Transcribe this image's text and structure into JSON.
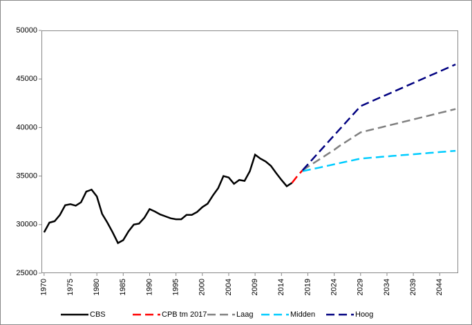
{
  "chart_data": {
    "type": "line",
    "categories": [
      "1970",
      null,
      null,
      null,
      null,
      "1975",
      null,
      null,
      null,
      null,
      "1980",
      null,
      null,
      null,
      null,
      "1985",
      null,
      null,
      null,
      null,
      "1990",
      null,
      null,
      null,
      null,
      "1995",
      null,
      null,
      null,
      null,
      "2000",
      null,
      null,
      null,
      null,
      "2004",
      null,
      null,
      null,
      null,
      "2009",
      null,
      null,
      null,
      null,
      "2014",
      null,
      null,
      null,
      null,
      "2019",
      null,
      null,
      null,
      null,
      "2024",
      null,
      null,
      null,
      null,
      "2029",
      null,
      null,
      null,
      null,
      "2034",
      null,
      null,
      null,
      null,
      "2039",
      null,
      null,
      null,
      null,
      "2044",
      null,
      null,
      null
    ],
    "ylim": [
      25000,
      50000
    ],
    "yticks": [
      25000,
      30000,
      35000,
      40000,
      45000,
      50000
    ],
    "grid": false,
    "legend": "bottom",
    "series": [
      {
        "name": "CBS",
        "color": "#000000",
        "dash": false,
        "values": [
          29200,
          30200,
          30350,
          31000,
          32000,
          32100,
          31950,
          32300,
          33400,
          33600,
          32900,
          31100,
          30200,
          29200,
          28100,
          28400,
          29300,
          30000,
          30100,
          30700,
          31600,
          31350,
          31050,
          30850,
          30650,
          30550,
          30550,
          31000,
          31000,
          31300,
          31800,
          32150,
          33000,
          33750,
          35000,
          34850,
          34200,
          34600,
          34500,
          35500,
          37200,
          36800,
          36500,
          36050,
          35300,
          34600,
          33950,
          34300,
          null,
          null,
          null,
          null,
          null,
          null,
          null,
          null,
          null,
          null,
          null,
          null,
          null,
          null,
          null,
          null,
          null,
          null,
          null,
          null,
          null,
          null,
          null,
          null,
          null,
          null,
          null,
          null,
          null,
          null,
          null
        ]
      },
      {
        "name": "CPB tm 2017",
        "color": "#ff0000",
        "dash": true,
        "values": [
          null,
          null,
          null,
          null,
          null,
          null,
          null,
          null,
          null,
          null,
          null,
          null,
          null,
          null,
          null,
          null,
          null,
          null,
          null,
          null,
          null,
          null,
          null,
          null,
          null,
          null,
          null,
          null,
          null,
          null,
          null,
          null,
          null,
          null,
          null,
          null,
          null,
          null,
          null,
          null,
          null,
          null,
          null,
          null,
          null,
          null,
          null,
          34300,
          35000,
          35600,
          null,
          null,
          null,
          null,
          null,
          null,
          null,
          null,
          null,
          null,
          null,
          null,
          null,
          null,
          null,
          null,
          null,
          null,
          null,
          null,
          null,
          null,
          null,
          null,
          null,
          null,
          null,
          null,
          null
        ]
      },
      {
        "name": "Laag",
        "color": "#808080",
        "dash": true,
        "values": [
          null,
          null,
          null,
          null,
          null,
          null,
          null,
          null,
          null,
          null,
          null,
          null,
          null,
          null,
          null,
          null,
          null,
          null,
          null,
          null,
          null,
          null,
          null,
          null,
          null,
          null,
          null,
          null,
          null,
          null,
          null,
          null,
          null,
          null,
          null,
          null,
          null,
          null,
          null,
          null,
          null,
          null,
          null,
          null,
          null,
          null,
          null,
          null,
          null,
          35600,
          35950,
          36300,
          36650,
          37000,
          37350,
          37700,
          38100,
          38450,
          38800,
          39150,
          39500,
          39630,
          39770,
          39900,
          40030,
          40170,
          40300,
          40430,
          40570,
          40700,
          40830,
          40970,
          41100,
          41230,
          41370,
          41500,
          41630,
          41770,
          41900
        ]
      },
      {
        "name": "Midden",
        "color": "#00ccff",
        "dash": true,
        "values": [
          null,
          null,
          null,
          null,
          null,
          null,
          null,
          null,
          null,
          null,
          null,
          null,
          null,
          null,
          null,
          null,
          null,
          null,
          null,
          null,
          null,
          null,
          null,
          null,
          null,
          null,
          null,
          null,
          null,
          null,
          null,
          null,
          null,
          null,
          null,
          null,
          null,
          null,
          null,
          null,
          null,
          null,
          null,
          null,
          null,
          null,
          null,
          null,
          null,
          35500,
          35620,
          35740,
          35850,
          35970,
          36090,
          36210,
          36330,
          36450,
          36560,
          36680,
          36800,
          36840,
          36890,
          36930,
          36980,
          37020,
          37070,
          37110,
          37160,
          37200,
          37240,
          37290,
          37330,
          37380,
          37420,
          37470,
          37510,
          37560,
          37600
        ]
      },
      {
        "name": "Hoog",
        "color": "#000080",
        "dash": true,
        "values": [
          null,
          null,
          null,
          null,
          null,
          null,
          null,
          null,
          null,
          null,
          null,
          null,
          null,
          null,
          null,
          null,
          null,
          null,
          null,
          null,
          null,
          null,
          null,
          null,
          null,
          null,
          null,
          null,
          null,
          null,
          null,
          null,
          null,
          null,
          null,
          null,
          null,
          null,
          null,
          null,
          null,
          null,
          null,
          null,
          null,
          null,
          null,
          null,
          null,
          35600,
          36200,
          36800,
          37400,
          38000,
          38600,
          39200,
          39800,
          40400,
          41000,
          41600,
          42200,
          42440,
          42680,
          42920,
          43160,
          43390,
          43630,
          43870,
          44110,
          44350,
          44590,
          44830,
          45070,
          45310,
          45540,
          45780,
          46020,
          46260,
          46500
        ]
      }
    ]
  }
}
